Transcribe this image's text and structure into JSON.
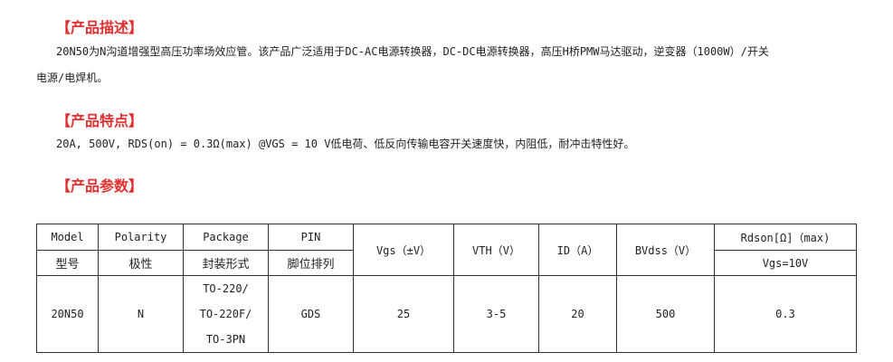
{
  "sections": {
    "desc_title": "【产品描述】",
    "desc_line1": "20N50为N沟道增强型高压功率场效应管。该产品广泛适用于DC-AC电源转换器，DC-DC电源转换器，高压H桥PMW马达驱动，逆变器（1000W）/开关",
    "desc_line2": "电源/电焊机。",
    "feat_title": "【产品特点】",
    "feat_text": "20A, 500V, RDS(on) = 0.3Ω(max) @VGS = 10 V低电荷、低反向传输电容开关速度快，内阻低，耐冲击特性好。",
    "param_title": "【产品参数】"
  },
  "table": {
    "headers_en": [
      "Model",
      "Polarity",
      "Package",
      "PIN"
    ],
    "headers_cn": [
      "型号",
      "极性",
      "封装形式",
      "脚位排列"
    ],
    "merged_headers": [
      "Vgs（±V）",
      "VTH（V）",
      "ID（A）",
      "BVdss（V）"
    ],
    "rdson_header": "Rdson[Ω]（max)",
    "rdson_sub": "Vgs=10V",
    "row": {
      "model": "20N50",
      "polarity": "N",
      "package": [
        "TO-220/",
        "TO-220F/",
        "TO-3PN"
      ],
      "pin": "GDS",
      "vgs": "25",
      "vth": "3-5",
      "id": "20",
      "bvdss": "500",
      "rdson": "0.3"
    }
  }
}
